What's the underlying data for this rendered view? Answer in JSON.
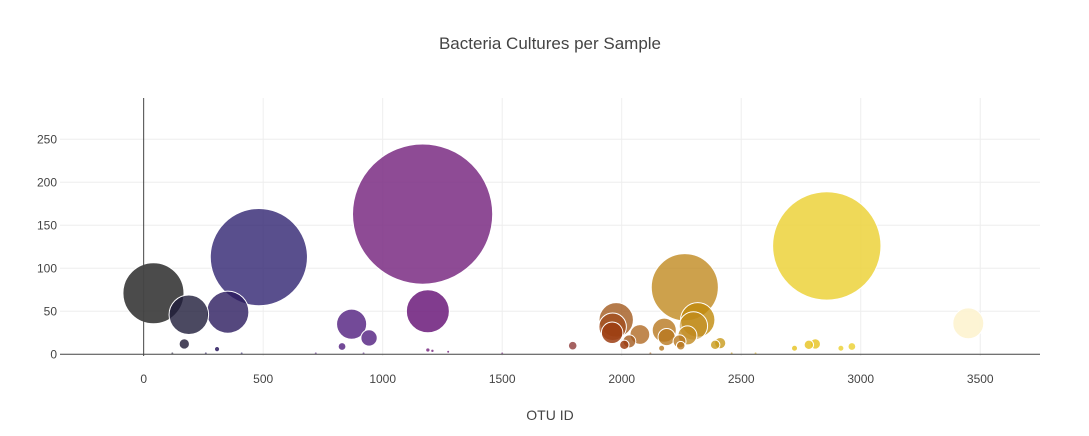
{
  "chart_data": {
    "type": "scatter",
    "mode": "bubble",
    "title": "Bacteria Cultures per Sample",
    "xlabel": "OTU ID",
    "ylabel": "",
    "xlim": [
      -350,
      3750
    ],
    "ylim": [
      -2,
      298
    ],
    "xticks": [
      0,
      500,
      1000,
      1500,
      2000,
      2500,
      3000,
      3500
    ],
    "yticks": [
      0,
      50,
      100,
      150,
      200,
      250
    ],
    "grid": true,
    "legend": "none",
    "colorscale": "dark-purple-to-yellow by OTU ID",
    "points": [
      {
        "x": 41,
        "y": 71,
        "color": "#2b2b2b",
        "opacity": 0.85
      },
      {
        "x": 189,
        "y": 46,
        "color": "#1e1b3a",
        "opacity": 0.8
      },
      {
        "x": 352,
        "y": 49,
        "color": "#2a1a5e",
        "opacity": 0.8
      },
      {
        "x": 482,
        "y": 113,
        "color": "#2f2371",
        "opacity": 0.8
      },
      {
        "x": 170,
        "y": 12,
        "color": "#2a2640",
        "opacity": 0.85
      },
      {
        "x": 307,
        "y": 6,
        "color": "#2a1a5e",
        "opacity": 0.85
      },
      {
        "x": 870,
        "y": 35,
        "color": "#5b2a86",
        "opacity": 0.85
      },
      {
        "x": 943,
        "y": 19,
        "color": "#5b2a86",
        "opacity": 0.85
      },
      {
        "x": 830,
        "y": 9,
        "color": "#5b2a86",
        "opacity": 0.85
      },
      {
        "x": 1167,
        "y": 163,
        "color": "#7a2b82",
        "opacity": 0.85
      },
      {
        "x": 1189,
        "y": 50,
        "color": "#6b1a7a",
        "opacity": 0.85
      },
      {
        "x": 1189,
        "y": 5,
        "color": "#7a2b82",
        "opacity": 0.85
      },
      {
        "x": 1208,
        "y": 4,
        "color": "#7a2b82",
        "opacity": 0.85
      },
      {
        "x": 1274,
        "y": 3,
        "color": "#7a2b82",
        "opacity": 0.85
      },
      {
        "x": 1795,
        "y": 10,
        "color": "#8e3b3a",
        "opacity": 0.8
      },
      {
        "x": 1977,
        "y": 40,
        "color": "#a35a1e",
        "opacity": 0.8
      },
      {
        "x": 1962,
        "y": 32,
        "color": "#a04a1a",
        "opacity": 0.75
      },
      {
        "x": 1960,
        "y": 25,
        "color": "#9c3d12",
        "opacity": 0.85
      },
      {
        "x": 2011,
        "y": 11,
        "color": "#9c3d12",
        "opacity": 0.85
      },
      {
        "x": 2032,
        "y": 15,
        "color": "#a35a1e",
        "opacity": 0.8
      },
      {
        "x": 2076,
        "y": 23,
        "color": "#b06a24",
        "opacity": 0.8
      },
      {
        "x": 2178,
        "y": 28,
        "color": "#b8781f",
        "opacity": 0.8
      },
      {
        "x": 2188,
        "y": 20,
        "color": "#b8781f",
        "opacity": 0.8
      },
      {
        "x": 2167,
        "y": 7,
        "color": "#b8781f",
        "opacity": 0.8
      },
      {
        "x": 2242,
        "y": 15,
        "color": "#b8781f",
        "opacity": 0.8
      },
      {
        "x": 2247,
        "y": 10,
        "color": "#b8781f",
        "opacity": 0.8
      },
      {
        "x": 2264,
        "y": 78,
        "color": "#c08a1f",
        "opacity": 0.8
      },
      {
        "x": 2275,
        "y": 22,
        "color": "#c08a1f",
        "opacity": 0.8
      },
      {
        "x": 2318,
        "y": 40,
        "color": "#c08a0a",
        "opacity": 0.8
      },
      {
        "x": 2300,
        "y": 33,
        "color": "#c08a1f",
        "opacity": 0.55
      },
      {
        "x": 2391,
        "y": 11,
        "color": "#c89a1a",
        "opacity": 0.8
      },
      {
        "x": 2412,
        "y": 13,
        "color": "#c89a1a",
        "opacity": 0.8
      },
      {
        "x": 2858,
        "y": 126,
        "color": "#ecd23b",
        "opacity": 0.85
      },
      {
        "x": 2723,
        "y": 7,
        "color": "#e8c52a",
        "opacity": 0.85
      },
      {
        "x": 2783,
        "y": 11,
        "color": "#e8c52a",
        "opacity": 0.85
      },
      {
        "x": 2810,
        "y": 12,
        "color": "#e8c52a",
        "opacity": 0.85
      },
      {
        "x": 2917,
        "y": 7,
        "color": "#ecd23b",
        "opacity": 0.85
      },
      {
        "x": 2963,
        "y": 9,
        "color": "#ecd23b",
        "opacity": 0.85
      },
      {
        "x": 3450,
        "y": 36,
        "color": "#fdf3cf",
        "opacity": 0.9
      },
      {
        "x": 120,
        "y": 1,
        "color": "#2a2640",
        "opacity": 0.6
      },
      {
        "x": 260,
        "y": 1,
        "color": "#2a1a5e",
        "opacity": 0.6
      },
      {
        "x": 410,
        "y": 1,
        "color": "#2f2371",
        "opacity": 0.6
      },
      {
        "x": 720,
        "y": 1,
        "color": "#5b2a86",
        "opacity": 0.6
      },
      {
        "x": 920,
        "y": 1,
        "color": "#5b2a86",
        "opacity": 0.6
      },
      {
        "x": 1500,
        "y": 1,
        "color": "#7a2b82",
        "opacity": 0.6
      },
      {
        "x": 2120,
        "y": 1,
        "color": "#b06a24",
        "opacity": 0.6
      },
      {
        "x": 2460,
        "y": 1,
        "color": "#c89a1a",
        "opacity": 0.6
      },
      {
        "x": 2560,
        "y": 1,
        "color": "#d8b02a",
        "opacity": 0.6
      }
    ]
  }
}
